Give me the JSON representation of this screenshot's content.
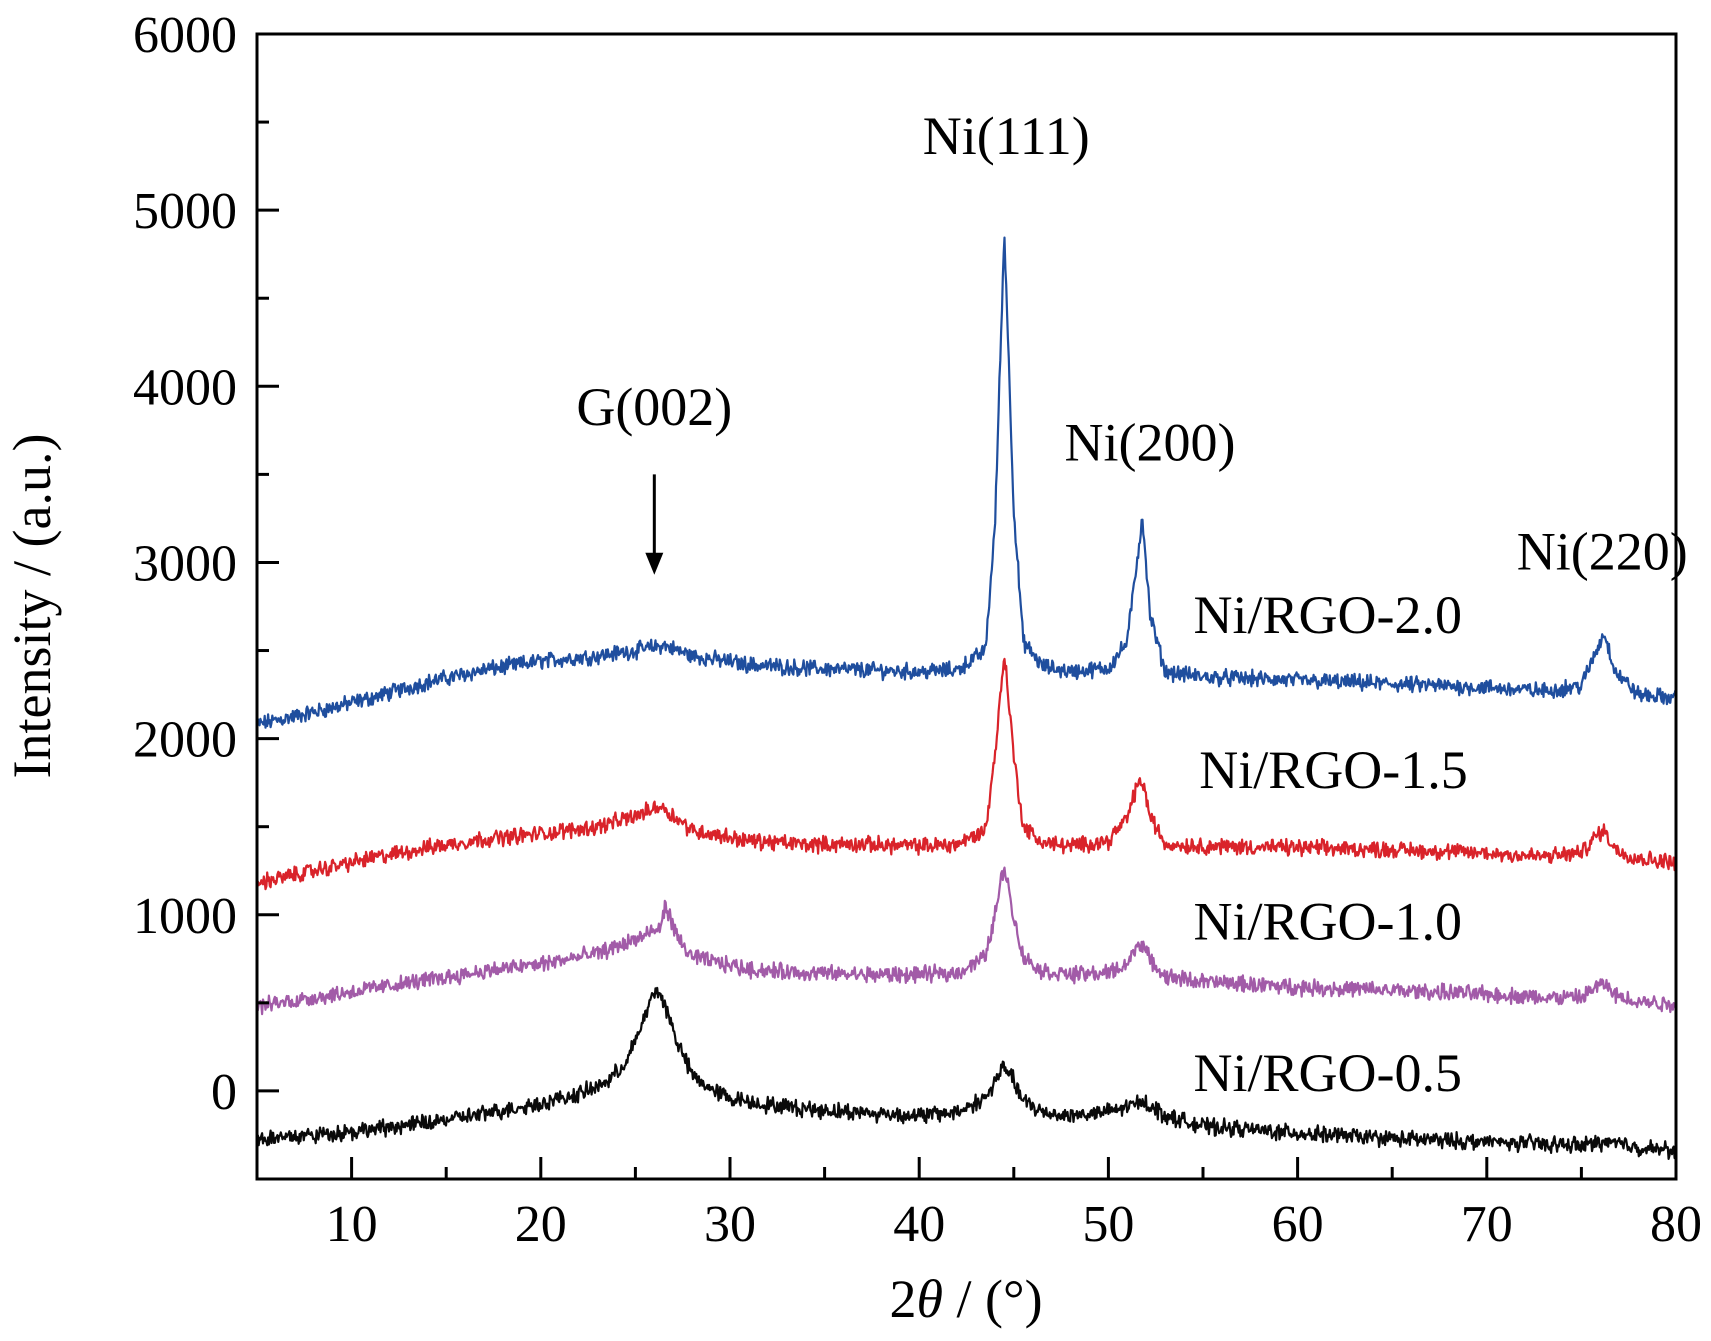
{
  "chart_data": {
    "type": "line",
    "title": "",
    "xlabel_prefix": "2",
    "xlabel_symbol": "θ",
    "xlabel_suffix": " / (°)",
    "ylabel": "Intensity / (a.u.)",
    "xlim": [
      5,
      80
    ],
    "ylim": [
      -500,
      6000
    ],
    "x_ticks": [
      10,
      20,
      30,
      40,
      50,
      60,
      70,
      80
    ],
    "x_tick_labels": [
      "10",
      "20",
      "30",
      "40",
      "50",
      "60",
      "70",
      "80"
    ],
    "y_ticks": [
      0,
      1000,
      2000,
      3000,
      4000,
      5000,
      6000
    ],
    "y_tick_labels": [
      "0",
      "1000",
      "2000",
      "3000",
      "4000",
      "5000",
      "6000"
    ],
    "grid": false,
    "legend": "none",
    "series": [
      {
        "name": "Ni/RGO-2.0",
        "color": "#1f4e9e",
        "x": [
          5,
          8,
          11,
          14,
          17,
          20,
          23,
          25,
          26.5,
          28,
          31,
          34,
          37,
          40,
          42,
          43.5,
          44,
          44.5,
          45,
          45.5,
          46.5,
          48,
          50,
          51,
          51.5,
          51.8,
          52.2,
          53,
          55,
          60,
          65,
          70,
          73,
          75,
          75.8,
          76.2,
          76.8,
          78,
          80
        ],
        "y": [
          2080,
          2150,
          2230,
          2320,
          2390,
          2440,
          2470,
          2500,
          2530,
          2470,
          2420,
          2400,
          2390,
          2380,
          2390,
          2500,
          3200,
          4880,
          3300,
          2550,
          2410,
          2380,
          2400,
          2550,
          3000,
          3260,
          2700,
          2380,
          2350,
          2330,
          2310,
          2290,
          2270,
          2300,
          2500,
          2600,
          2380,
          2250,
          2230
        ]
      },
      {
        "name": "Ni/RGO-1.5",
        "color": "#d9232a",
        "x": [
          5,
          8,
          11,
          14,
          17,
          20,
          23,
          25,
          26.3,
          28,
          31,
          34,
          37,
          40,
          42,
          43.5,
          44,
          44.5,
          45,
          45.5,
          46.5,
          48,
          50,
          51,
          51.5,
          51.8,
          52.2,
          53,
          55,
          60,
          65,
          70,
          73,
          75,
          75.8,
          76.2,
          76.8,
          78,
          80
        ],
        "y": [
          1180,
          1250,
          1320,
          1380,
          1430,
          1460,
          1500,
          1560,
          1620,
          1480,
          1420,
          1400,
          1400,
          1390,
          1400,
          1480,
          1900,
          2490,
          1900,
          1500,
          1410,
          1390,
          1420,
          1550,
          1730,
          1760,
          1560,
          1400,
          1390,
          1380,
          1370,
          1350,
          1330,
          1350,
          1450,
          1480,
          1370,
          1320,
          1300
        ]
      },
      {
        "name": "Ni/RGO-1.0",
        "color": "#a25ba8",
        "x": [
          5,
          8,
          11,
          14,
          17,
          20,
          23,
          25,
          26.3,
          26.6,
          27.2,
          28,
          31,
          34,
          37,
          40,
          42,
          43.5,
          44,
          44.5,
          45,
          45.5,
          46.5,
          48,
          50,
          51,
          51.5,
          51.8,
          52.2,
          53,
          55,
          60,
          65,
          70,
          73,
          75,
          75.8,
          76.2,
          76.8,
          78,
          80
        ],
        "y": [
          480,
          530,
          580,
          630,
          680,
          720,
          780,
          860,
          920,
          1060,
          870,
          760,
          690,
          670,
          660,
          660,
          670,
          760,
          1000,
          1290,
          980,
          760,
          680,
          660,
          670,
          720,
          820,
          840,
          740,
          650,
          620,
          590,
          570,
          550,
          530,
          530,
          590,
          610,
          540,
          510,
          490
        ]
      },
      {
        "name": "Ni/RGO-0.5",
        "color": "#0a0a0a",
        "x": [
          5,
          8,
          11,
          14,
          17,
          20,
          22,
          23.5,
          24.5,
          25.3,
          25.8,
          26.2,
          26.6,
          27.2,
          28,
          29,
          30,
          32,
          35,
          38,
          40,
          42,
          43.5,
          44,
          44.5,
          45,
          45.5,
          46.5,
          48,
          50,
          51,
          51.5,
          51.8,
          52.2,
          53,
          55,
          60,
          65,
          70,
          73,
          75,
          76,
          77,
          78,
          80
        ],
        "y": [
          -270,
          -250,
          -220,
          -180,
          -130,
          -70,
          -20,
          50,
          160,
          360,
          520,
          570,
          480,
          280,
          90,
          10,
          -40,
          -80,
          -110,
          -130,
          -140,
          -120,
          -40,
          50,
          140,
          60,
          -60,
          -120,
          -140,
          -120,
          -90,
          -70,
          -60,
          -80,
          -140,
          -200,
          -240,
          -270,
          -290,
          -300,
          -310,
          -290,
          -300,
          -320,
          -340
        ]
      }
    ],
    "annotations": [
      {
        "text": "G(002)",
        "x": 26,
        "y": 3780,
        "arrow_from_y": 3500,
        "arrow_to_y": 2930
      },
      {
        "text": "Ni(111)",
        "x": 44.6,
        "y": 5320
      },
      {
        "text": "Ni(200)",
        "x": 52.2,
        "y": 3580
      },
      {
        "text": "Ni(220)",
        "x": 76.1,
        "y": 2960
      }
    ],
    "series_label_positions": [
      {
        "series": "Ni/RGO-2.0",
        "x": 54.5,
        "y": 2600
      },
      {
        "series": "Ni/RGO-1.5",
        "x": 54.8,
        "y": 1720
      },
      {
        "series": "Ni/RGO-1.0",
        "x": 54.5,
        "y": 860
      },
      {
        "series": "Ni/RGO-0.5",
        "x": 54.5,
        "y": 0
      }
    ]
  }
}
